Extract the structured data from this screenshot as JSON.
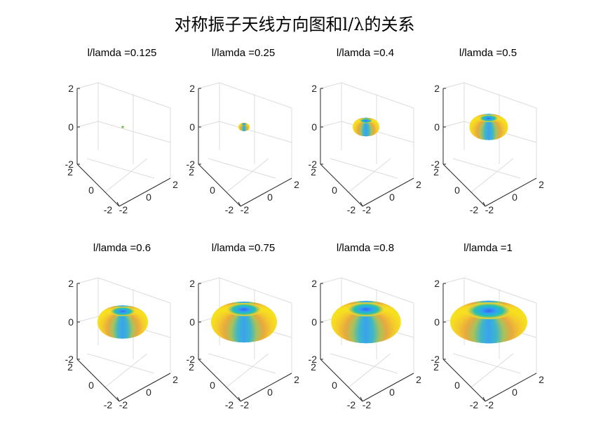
{
  "figure": {
    "title": "对称振子天线方向图和l/λ的关系"
  },
  "colormap": {
    "stops": [
      "#3ea8f0",
      "#17b6c6",
      "#49c28f",
      "#9fc65f",
      "#e7b946",
      "#f7cf3a",
      "#f6e31d"
    ]
  },
  "chart_data": [
    {
      "type": "surface3d",
      "title": "l/lamda =0.125",
      "l_over_lambda": 0.125,
      "zlim": [
        -2,
        2
      ],
      "xlim": [
        -2,
        2
      ],
      "ylim": [
        -2,
        2
      ],
      "z_ticks": [
        "2",
        "0",
        "-2"
      ],
      "x_ticks": [
        "2",
        "0",
        "-2"
      ],
      "y_ticks": [
        "-2",
        "0",
        "2"
      ],
      "grid": true
    },
    {
      "type": "surface3d",
      "title": "l/lamda =0.25",
      "l_over_lambda": 0.25,
      "zlim": [
        -2,
        2
      ],
      "xlim": [
        -2,
        2
      ],
      "ylim": [
        -2,
        2
      ],
      "z_ticks": [
        "2",
        "0",
        "-2"
      ],
      "x_ticks": [
        "2",
        "0",
        "-2"
      ],
      "y_ticks": [
        "-2",
        "0",
        "2"
      ],
      "grid": true
    },
    {
      "type": "surface3d",
      "title": "l/lamda =0.4",
      "l_over_lambda": 0.4,
      "zlim": [
        -2,
        2
      ],
      "xlim": [
        -2,
        2
      ],
      "ylim": [
        -2,
        2
      ],
      "z_ticks": [
        "2",
        "0",
        "-2"
      ],
      "x_ticks": [
        "2",
        "0",
        "-2"
      ],
      "y_ticks": [
        "-2",
        "0",
        "2"
      ],
      "grid": true
    },
    {
      "type": "surface3d",
      "title": "l/lamda =0.5",
      "l_over_lambda": 0.5,
      "zlim": [
        -2,
        2
      ],
      "xlim": [
        -2,
        2
      ],
      "ylim": [
        -2,
        2
      ],
      "z_ticks": [
        "2",
        "0",
        "-2"
      ],
      "x_ticks": [
        "2",
        "0",
        "-2"
      ],
      "y_ticks": [
        "-2",
        "0",
        "2"
      ],
      "grid": true
    },
    {
      "type": "surface3d",
      "title": "l/lamda =0.6",
      "l_over_lambda": 0.6,
      "zlim": [
        -2,
        2
      ],
      "xlim": [
        -2,
        2
      ],
      "ylim": [
        -2,
        2
      ],
      "z_ticks": [
        "2",
        "0",
        "-2"
      ],
      "x_ticks": [
        "2",
        "0",
        "-2"
      ],
      "y_ticks": [
        "-2",
        "0",
        "2"
      ],
      "grid": true
    },
    {
      "type": "surface3d",
      "title": "l/lamda =0.75",
      "l_over_lambda": 0.75,
      "zlim": [
        -2,
        2
      ],
      "xlim": [
        -2,
        2
      ],
      "ylim": [
        -2,
        2
      ],
      "z_ticks": [
        "2",
        "0",
        "-2"
      ],
      "x_ticks": [
        "2",
        "0",
        "-2"
      ],
      "y_ticks": [
        "-2",
        "0",
        "2"
      ],
      "grid": true
    },
    {
      "type": "surface3d",
      "title": "l/lamda =0.8",
      "l_over_lambda": 0.8,
      "zlim": [
        -2,
        2
      ],
      "xlim": [
        -2,
        2
      ],
      "ylim": [
        -2,
        2
      ],
      "z_ticks": [
        "2",
        "0",
        "-2"
      ],
      "x_ticks": [
        "2",
        "0",
        "-2"
      ],
      "y_ticks": [
        "-2",
        "0",
        "2"
      ],
      "grid": true
    },
    {
      "type": "surface3d",
      "title": "l/lamda =1",
      "l_over_lambda": 1,
      "zlim": [
        -2,
        2
      ],
      "xlim": [
        -2,
        2
      ],
      "ylim": [
        -2,
        2
      ],
      "z_ticks": [
        "2",
        "0",
        "-2"
      ],
      "x_ticks": [
        "2",
        "0",
        "-2"
      ],
      "y_ticks": [
        "-2",
        "0",
        "2"
      ],
      "grid": true
    }
  ]
}
